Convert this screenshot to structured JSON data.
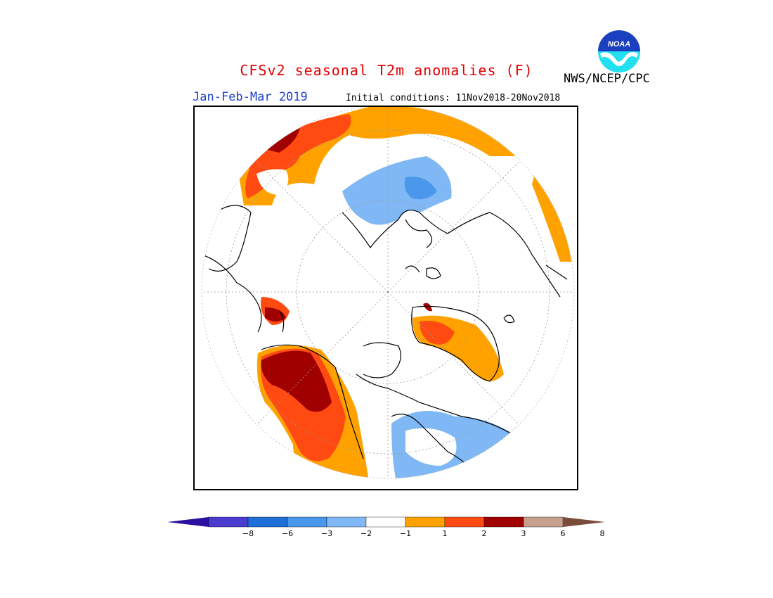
{
  "title": "CFSv2 seasonal T2m anomalies (F)",
  "period": "Jan-Feb-Mar 2019",
  "initial_conditions": "Initial conditions: 11Nov2018-20Nov2018",
  "agency": "NWS/NCEP/CPC",
  "logo": {
    "text": "NOAA",
    "top_color": "#1a3fbf",
    "bottom_color": "#22e0f0"
  },
  "legend": {
    "tick_labels": [
      "−8",
      "−6",
      "−3",
      "−2",
      "−1",
      "1",
      "2",
      "3",
      "6",
      "8"
    ],
    "colors": [
      "#2b0fa0",
      "#4a3ccf",
      "#1f6fd8",
      "#4a97ec",
      "#7fb8f4",
      "#ffffff",
      "#ffa200",
      "#ff4a12",
      "#a00000",
      "#c8a090",
      "#7a4a3a"
    ]
  }
}
